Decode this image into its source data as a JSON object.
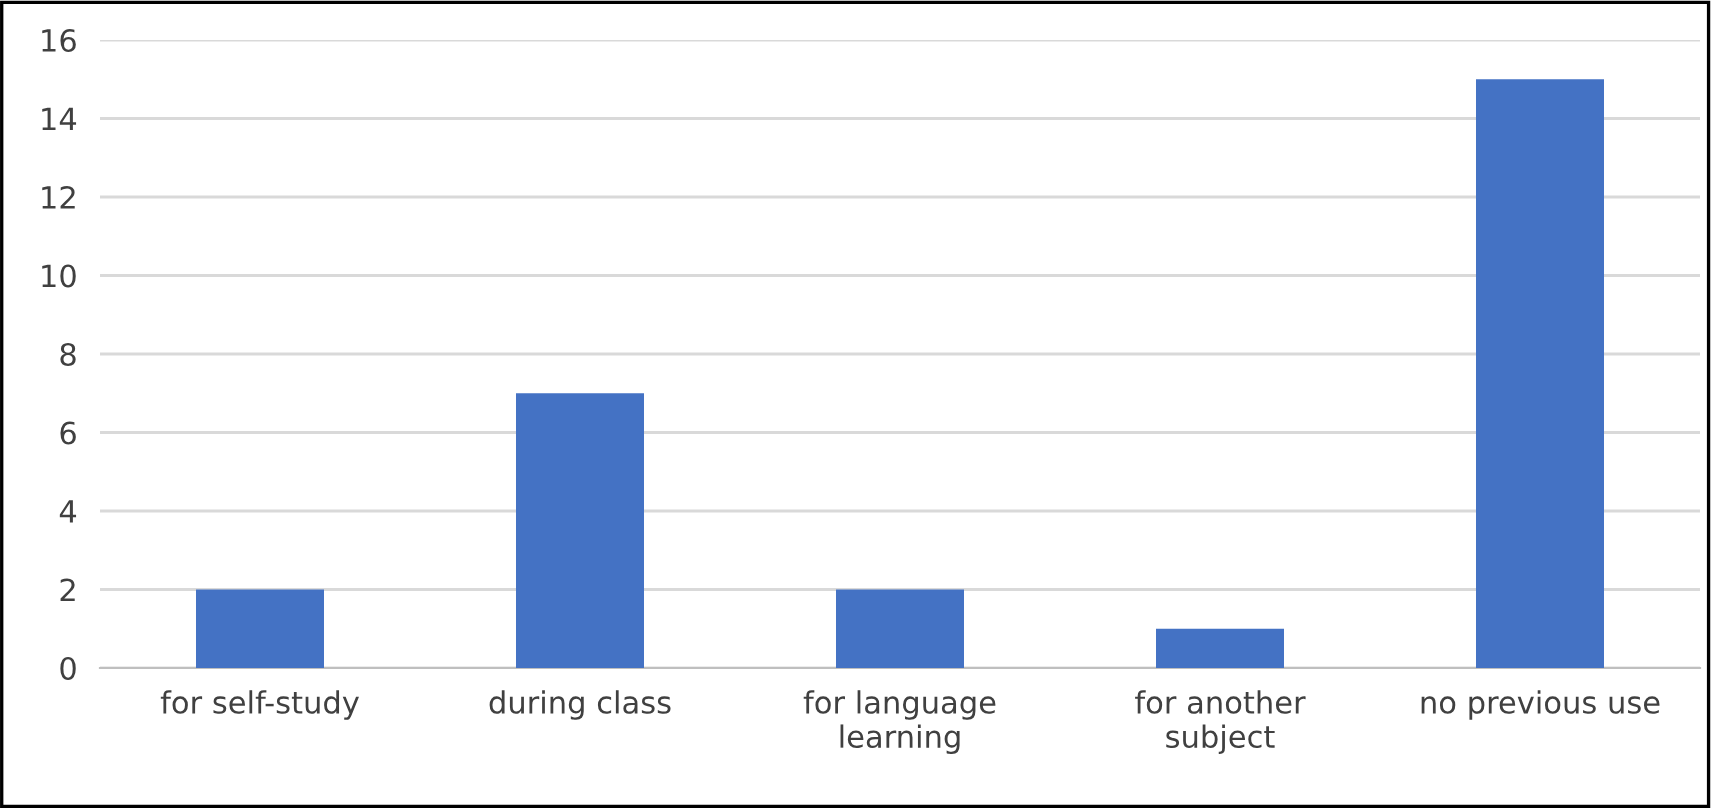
{
  "chart_data": {
    "type": "bar",
    "categories": [
      "for self-study",
      "during class",
      "for language\nlearning",
      "for another\nsubject",
      "no previous use"
    ],
    "values": [
      2,
      7,
      2,
      1,
      15
    ],
    "color": "#4472c4",
    "ylim": [
      0,
      16
    ],
    "yticks": [
      0,
      2,
      4,
      6,
      8,
      10,
      12,
      14,
      16
    ],
    "grid": "y"
  }
}
